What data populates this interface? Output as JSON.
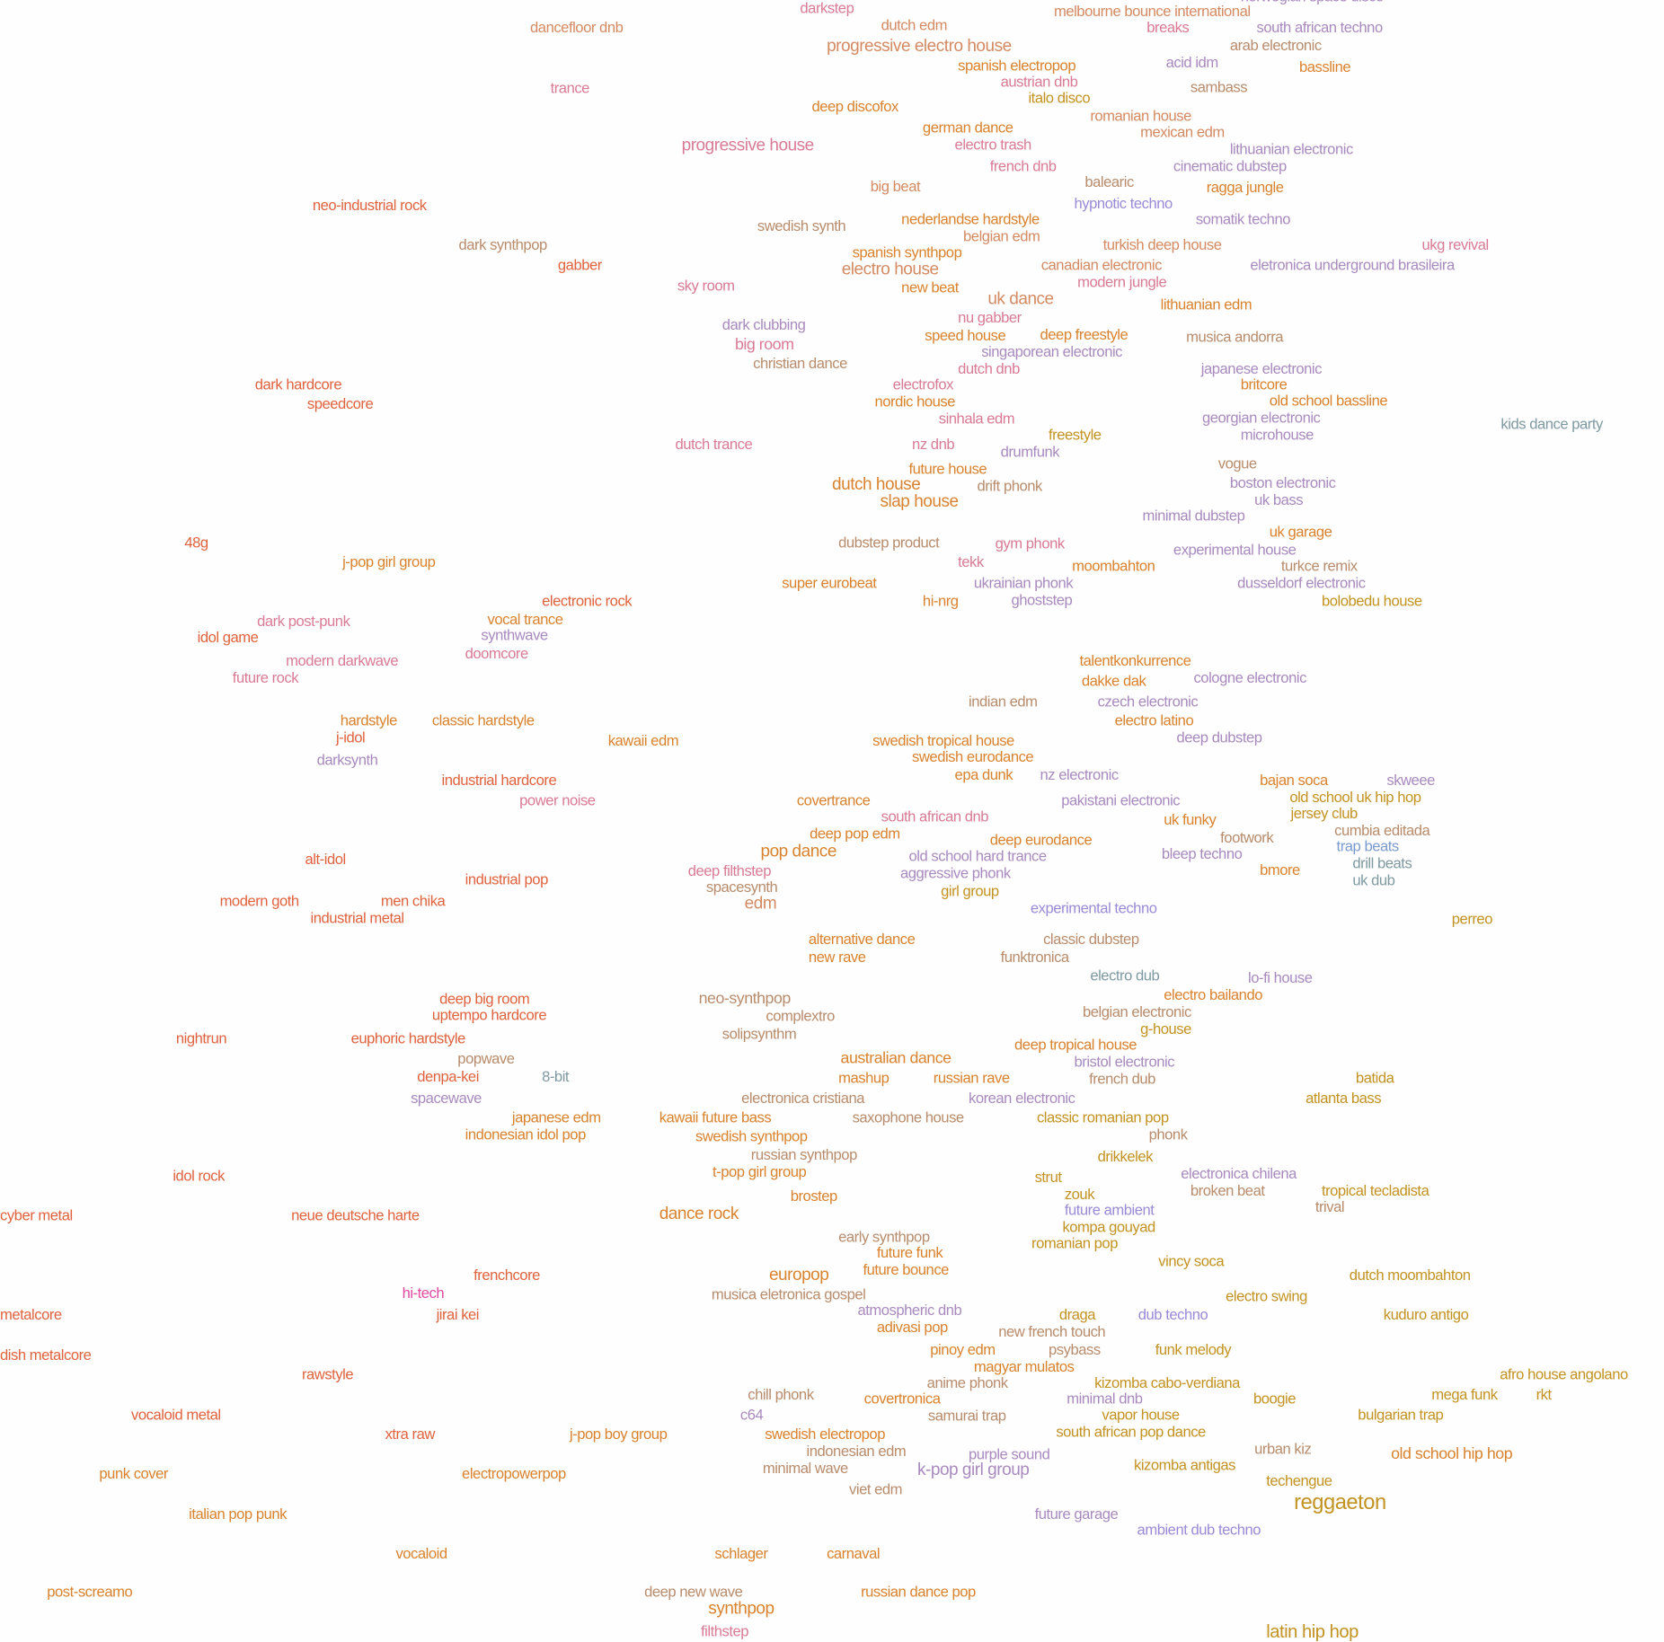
{
  "palette": {
    "o": "#d9832f",
    "r": "#e0633f",
    "p": "#d97b95",
    "m": "#a98abf",
    "v": "#9b8ad6",
    "t": "#d48a62",
    "g": "#c39322",
    "b": "#7b9bd0",
    "s": "#7f9aa3",
    "br": "#b88c6c",
    "pk": "#e04aa0"
  },
  "genres": [
    {
      "label": "norwegian space disco",
      "c": "m"
    },
    {
      "label": "darkstep",
      "c": "p"
    },
    {
      "label": "dancefloor dnb",
      "c": "t"
    },
    {
      "label": "dutch edm",
      "c": "t"
    },
    {
      "label": "progressive electro house",
      "c": "t"
    },
    {
      "label": "melbourne bounce international",
      "c": "t"
    },
    {
      "label": "breaks",
      "c": "p"
    },
    {
      "label": "south african techno",
      "c": "m"
    },
    {
      "label": "arab electronic",
      "c": "br"
    },
    {
      "label": "spanish electropop",
      "c": "o"
    },
    {
      "label": "acid idm",
      "c": "m"
    },
    {
      "label": "bassline",
      "c": "o"
    },
    {
      "label": "austrian dnb",
      "c": "p"
    },
    {
      "label": "italo disco",
      "c": "g"
    },
    {
      "label": "sambass",
      "c": "br"
    },
    {
      "label": "trance",
      "c": "p"
    },
    {
      "label": "deep discofox",
      "c": "o"
    },
    {
      "label": "romanian house",
      "c": "t"
    },
    {
      "label": "german dance",
      "c": "o"
    },
    {
      "label": "mexican edm",
      "c": "t"
    },
    {
      "label": "progressive house",
      "c": "p"
    },
    {
      "label": "electro trash",
      "c": "p"
    },
    {
      "label": "lithuanian electronic",
      "c": "m"
    },
    {
      "label": "french dnb",
      "c": "p"
    },
    {
      "label": "cinematic dubstep",
      "c": "m"
    },
    {
      "label": "balearic",
      "c": "br"
    },
    {
      "label": "big beat",
      "c": "t"
    },
    {
      "label": "ragga jungle",
      "c": "o"
    },
    {
      "label": "neo-industrial rock",
      "c": "r"
    },
    {
      "label": "hypnotic techno",
      "c": "v"
    },
    {
      "label": "somatik techno",
      "c": "m"
    },
    {
      "label": "swedish synth",
      "c": "br"
    },
    {
      "label": "nederlandse hardstyle",
      "c": "o"
    },
    {
      "label": "belgian edm",
      "c": "t"
    },
    {
      "label": "dark synthpop",
      "c": "br"
    },
    {
      "label": "turkish deep house",
      "c": "t"
    },
    {
      "label": "ukg revival",
      "c": "p"
    },
    {
      "label": "spanish synthpop",
      "c": "o"
    },
    {
      "label": "gabber",
      "c": "r"
    },
    {
      "label": "canadian electronic",
      "c": "t"
    },
    {
      "label": "eletronica underground brasileira",
      "c": "m"
    },
    {
      "label": "electro house",
      "c": "t"
    },
    {
      "label": "modern jungle",
      "c": "p"
    },
    {
      "label": "sky room",
      "c": "p"
    },
    {
      "label": "new beat",
      "c": "o"
    },
    {
      "label": "uk dance",
      "c": "t"
    },
    {
      "label": "lithuanian edm",
      "c": "o"
    },
    {
      "label": "nu gabber",
      "c": "p"
    },
    {
      "label": "dark clubbing",
      "c": "m"
    },
    {
      "label": "deep freestyle",
      "c": "o"
    },
    {
      "label": "speed house",
      "c": "o"
    },
    {
      "label": "musica andorra",
      "c": "br"
    },
    {
      "label": "big room",
      "c": "p"
    },
    {
      "label": "singaporean electronic",
      "c": "m"
    },
    {
      "label": "christian dance",
      "c": "br"
    },
    {
      "label": "dutch dnb",
      "c": "p"
    },
    {
      "label": "japanese electronic",
      "c": "m"
    },
    {
      "label": "britcore",
      "c": "o"
    },
    {
      "label": "dark hardcore",
      "c": "r"
    },
    {
      "label": "electrofox",
      "c": "p"
    },
    {
      "label": "nordic house",
      "c": "o"
    },
    {
      "label": "old school bassline",
      "c": "o"
    },
    {
      "label": "speedcore",
      "c": "r"
    },
    {
      "label": "sinhala edm",
      "c": "p"
    },
    {
      "label": "georgian electronic",
      "c": "m"
    },
    {
      "label": "kids dance party",
      "c": "s"
    },
    {
      "label": "freestyle",
      "c": "g"
    },
    {
      "label": "microhouse",
      "c": "m"
    },
    {
      "label": "dutch trance",
      "c": "p"
    },
    {
      "label": "nz dnb",
      "c": "p"
    },
    {
      "label": "drumfunk",
      "c": "m"
    },
    {
      "label": "vogue",
      "c": "br"
    },
    {
      "label": "future house",
      "c": "o"
    },
    {
      "label": "boston electronic",
      "c": "m"
    },
    {
      "label": "dutch house",
      "c": "o"
    },
    {
      "label": "drift phonk",
      "c": "br"
    },
    {
      "label": "uk bass",
      "c": "m"
    },
    {
      "label": "slap house",
      "c": "o"
    },
    {
      "label": "minimal dubstep",
      "c": "m"
    },
    {
      "label": "uk garage",
      "c": "o"
    },
    {
      "label": "48g",
      "c": "r"
    },
    {
      "label": "dubstep product",
      "c": "br"
    },
    {
      "label": "gym phonk",
      "c": "p"
    },
    {
      "label": "experimental house",
      "c": "m"
    },
    {
      "label": "j-pop girl group",
      "c": "o"
    },
    {
      "label": "tekk",
      "c": "p"
    },
    {
      "label": "moombahton",
      "c": "o"
    },
    {
      "label": "turkce remix",
      "c": "br"
    },
    {
      "label": "super eurobeat",
      "c": "o"
    },
    {
      "label": "ukrainian phonk",
      "c": "m"
    },
    {
      "label": "dusseldorf electronic",
      "c": "m"
    },
    {
      "label": "electronic rock",
      "c": "r"
    },
    {
      "label": "hi-nrg",
      "c": "o"
    },
    {
      "label": "ghoststep",
      "c": "m"
    },
    {
      "label": "bolobedu house",
      "c": "g"
    },
    {
      "label": "vocal trance",
      "c": "o"
    },
    {
      "label": "dark post-punk",
      "c": "p"
    },
    {
      "label": "synthwave",
      "c": "m"
    },
    {
      "label": "idol game",
      "c": "r"
    },
    {
      "label": "doomcore",
      "c": "p"
    },
    {
      "label": "modern darkwave",
      "c": "p"
    },
    {
      "label": "talentkonkurrence",
      "c": "o"
    },
    {
      "label": "future rock",
      "c": "p"
    },
    {
      "label": "dakke dak",
      "c": "o"
    },
    {
      "label": "cologne electronic",
      "c": "m"
    },
    {
      "label": "indian edm",
      "c": "br"
    },
    {
      "label": "czech electronic",
      "c": "m"
    },
    {
      "label": "electro latino",
      "c": "o"
    },
    {
      "label": "hardstyle",
      "c": "o"
    },
    {
      "label": "classic hardstyle",
      "c": "o"
    },
    {
      "label": "j-idol",
      "c": "r"
    },
    {
      "label": "deep dubstep",
      "c": "m"
    },
    {
      "label": "kawaii edm",
      "c": "o"
    },
    {
      "label": "swedish tropical house",
      "c": "o"
    },
    {
      "label": "swedish eurodance",
      "c": "o"
    },
    {
      "label": "darksynth",
      "c": "m"
    },
    {
      "label": "epa dunk",
      "c": "o"
    },
    {
      "label": "nz electronic",
      "c": "m"
    },
    {
      "label": "industrial hardcore",
      "c": "r"
    },
    {
      "label": "bajan soca",
      "c": "o"
    },
    {
      "label": "skweee",
      "c": "m"
    },
    {
      "label": "old school uk hip hop",
      "c": "g"
    },
    {
      "label": "covertrance",
      "c": "o"
    },
    {
      "label": "power noise",
      "c": "p"
    },
    {
      "label": "pakistani electronic",
      "c": "m"
    },
    {
      "label": "jersey club",
      "c": "g"
    },
    {
      "label": "south african dnb",
      "c": "p"
    },
    {
      "label": "uk funky",
      "c": "o"
    },
    {
      "label": "deep pop edm",
      "c": "o"
    },
    {
      "label": "cumbia editada",
      "c": "br"
    },
    {
      "label": "footwork",
      "c": "br"
    },
    {
      "label": "deep eurodance",
      "c": "o"
    },
    {
      "label": "trap beats",
      "c": "b"
    },
    {
      "label": "pop dance",
      "c": "o"
    },
    {
      "label": "bleep techno",
      "c": "m"
    },
    {
      "label": "old school hard trance",
      "c": "m"
    },
    {
      "label": "alt-idol",
      "c": "r"
    },
    {
      "label": "drill beats",
      "c": "s"
    },
    {
      "label": "deep filthstep",
      "c": "p"
    },
    {
      "label": "aggressive phonk",
      "c": "m"
    },
    {
      "label": "bmore",
      "c": "o"
    },
    {
      "label": "industrial pop",
      "c": "r"
    },
    {
      "label": "uk dub",
      "c": "s"
    },
    {
      "label": "spacesynth",
      "c": "br"
    },
    {
      "label": "girl group",
      "c": "g"
    },
    {
      "label": "modern goth",
      "c": "r"
    },
    {
      "label": "men chika",
      "c": "r"
    },
    {
      "label": "edm",
      "c": "t"
    },
    {
      "label": "experimental techno",
      "c": "v"
    },
    {
      "label": "perreo",
      "c": "g"
    },
    {
      "label": "industrial metal",
      "c": "r"
    },
    {
      "label": "alternative dance",
      "c": "o"
    },
    {
      "label": "classic dubstep",
      "c": "br"
    },
    {
      "label": "new rave",
      "c": "o"
    },
    {
      "label": "funktronica",
      "c": "br"
    },
    {
      "label": "electro dub",
      "c": "s"
    },
    {
      "label": "lo-fi house",
      "c": "m"
    },
    {
      "label": "electro bailando",
      "c": "o"
    },
    {
      "label": "deep big room",
      "c": "r"
    },
    {
      "label": "neo-synthpop",
      "c": "br"
    },
    {
      "label": "complextro",
      "c": "br"
    },
    {
      "label": "belgian electronic",
      "c": "br"
    },
    {
      "label": "uptempo hardcore",
      "c": "r"
    },
    {
      "label": "g-house",
      "c": "g"
    },
    {
      "label": "nightrun",
      "c": "r"
    },
    {
      "label": "euphoric hardstyle",
      "c": "r"
    },
    {
      "label": "solipsynthm",
      "c": "br"
    },
    {
      "label": "deep tropical house",
      "c": "o"
    },
    {
      "label": "popwave",
      "c": "br"
    },
    {
      "label": "australian dance",
      "c": "o"
    },
    {
      "label": "bristol electronic",
      "c": "m"
    },
    {
      "label": "8-bit",
      "c": "s"
    },
    {
      "label": "denpa-kei",
      "c": "r"
    },
    {
      "label": "mashup",
      "c": "o"
    },
    {
      "label": "russian rave",
      "c": "o"
    },
    {
      "label": "french dub",
      "c": "br"
    },
    {
      "label": "batida",
      "c": "g"
    },
    {
      "label": "spacewave",
      "c": "m"
    },
    {
      "label": "electronica cristiana",
      "c": "br"
    },
    {
      "label": "korean electronic",
      "c": "m"
    },
    {
      "label": "atlanta bass",
      "c": "g"
    },
    {
      "label": "japanese edm",
      "c": "o"
    },
    {
      "label": "kawaii future bass",
      "c": "o"
    },
    {
      "label": "saxophone house",
      "c": "br"
    },
    {
      "label": "classic romanian pop",
      "c": "g"
    },
    {
      "label": "indonesian idol pop",
      "c": "o"
    },
    {
      "label": "phonk",
      "c": "br"
    },
    {
      "label": "swedish synthpop",
      "c": "o"
    },
    {
      "label": "russian synthpop",
      "c": "br"
    },
    {
      "label": "drikkelek",
      "c": "g"
    },
    {
      "label": "t-pop girl group",
      "c": "o"
    },
    {
      "label": "electronica chilena",
      "c": "m"
    },
    {
      "label": "idol rock",
      "c": "r"
    },
    {
      "label": "strut",
      "c": "g"
    },
    {
      "label": "broken beat",
      "c": "br"
    },
    {
      "label": "tropical tecladista",
      "c": "g"
    },
    {
      "label": "brostep",
      "c": "o"
    },
    {
      "label": "zouk",
      "c": "g"
    },
    {
      "label": "trival",
      "c": "br"
    },
    {
      "label": "cyber metal",
      "c": "r"
    },
    {
      "label": "neue deutsche harte",
      "c": "r"
    },
    {
      "label": "dance rock",
      "c": "o"
    },
    {
      "label": "future ambient",
      "c": "v"
    },
    {
      "label": "kompa gouyad",
      "c": "g"
    },
    {
      "label": "early synthpop",
      "c": "br"
    },
    {
      "label": "romanian pop",
      "c": "g"
    },
    {
      "label": "future funk",
      "c": "o"
    },
    {
      "label": "vincy soca",
      "c": "g"
    },
    {
      "label": "future bounce",
      "c": "o"
    },
    {
      "label": "frenchcore",
      "c": "r"
    },
    {
      "label": "europop",
      "c": "o"
    },
    {
      "label": "dutch moombahton",
      "c": "g"
    },
    {
      "label": "musica eletronica gospel",
      "c": "br"
    },
    {
      "label": "hi-tech",
      "c": "pk"
    },
    {
      "label": "electro swing",
      "c": "g"
    },
    {
      "label": "atmospheric dnb",
      "c": "m"
    },
    {
      "label": "metalcore",
      "c": "r"
    },
    {
      "label": "jirai kei",
      "c": "r"
    },
    {
      "label": "draga",
      "c": "g"
    },
    {
      "label": "dub techno",
      "c": "v"
    },
    {
      "label": "kuduro antigo",
      "c": "g"
    },
    {
      "label": "adivasi pop",
      "c": "o"
    },
    {
      "label": "new french touch",
      "c": "br"
    },
    {
      "label": "funk melody",
      "c": "g"
    },
    {
      "label": "pinoy edm",
      "c": "o"
    },
    {
      "label": "psybass",
      "c": "br"
    },
    {
      "label": "dish metalcore",
      "c": "r"
    },
    {
      "label": "rawstyle",
      "c": "r"
    },
    {
      "label": "magyar mulatos",
      "c": "o"
    },
    {
      "label": "afro house angolano",
      "c": "g"
    },
    {
      "label": "anime phonk",
      "c": "br"
    },
    {
      "label": "kizomba cabo-verdiana",
      "c": "g"
    },
    {
      "label": "chill phonk",
      "c": "br"
    },
    {
      "label": "mega funk",
      "c": "g"
    },
    {
      "label": "rkt",
      "c": "g"
    },
    {
      "label": "covertronica",
      "c": "o"
    },
    {
      "label": "boogie",
      "c": "g"
    },
    {
      "label": "minimal dnb",
      "c": "m"
    },
    {
      "label": "vocaloid metal",
      "c": "r"
    },
    {
      "label": "c64",
      "c": "m"
    },
    {
      "label": "samurai trap",
      "c": "br"
    },
    {
      "label": "vapor house",
      "c": "g"
    },
    {
      "label": "bulgarian trap",
      "c": "g"
    },
    {
      "label": "xtra raw",
      "c": "r"
    },
    {
      "label": "j-pop boy group",
      "c": "o"
    },
    {
      "label": "swedish electropop",
      "c": "o"
    },
    {
      "label": "south african pop dance",
      "c": "g"
    },
    {
      "label": "urban kiz",
      "c": "br"
    },
    {
      "label": "indonesian edm",
      "c": "br"
    },
    {
      "label": "purple sound",
      "c": "m"
    },
    {
      "label": "old school hip hop",
      "c": "o"
    },
    {
      "label": "punk cover",
      "c": "o"
    },
    {
      "label": "electropowerpop",
      "c": "o"
    },
    {
      "label": "minimal wave",
      "c": "br"
    },
    {
      "label": "k-pop girl group",
      "c": "m"
    },
    {
      "label": "kizomba antigas",
      "c": "g"
    },
    {
      "label": "techengue",
      "c": "g"
    },
    {
      "label": "viet edm",
      "c": "br"
    },
    {
      "label": "italian pop punk",
      "c": "o"
    },
    {
      "label": "future garage",
      "c": "m"
    },
    {
      "label": "reggaeton",
      "c": "g"
    },
    {
      "label": "ambient dub techno",
      "c": "v"
    },
    {
      "label": "vocaloid",
      "c": "o"
    },
    {
      "label": "schlager",
      "c": "o"
    },
    {
      "label": "carnaval",
      "c": "o"
    },
    {
      "label": "post-screamo",
      "c": "o"
    },
    {
      "label": "deep new wave",
      "c": "br"
    },
    {
      "label": "russian dance pop",
      "c": "o"
    },
    {
      "label": "synthpop",
      "c": "o"
    },
    {
      "label": "filthstep",
      "c": "p"
    },
    {
      "label": "latin hip hop",
      "c": "g"
    }
  ]
}
